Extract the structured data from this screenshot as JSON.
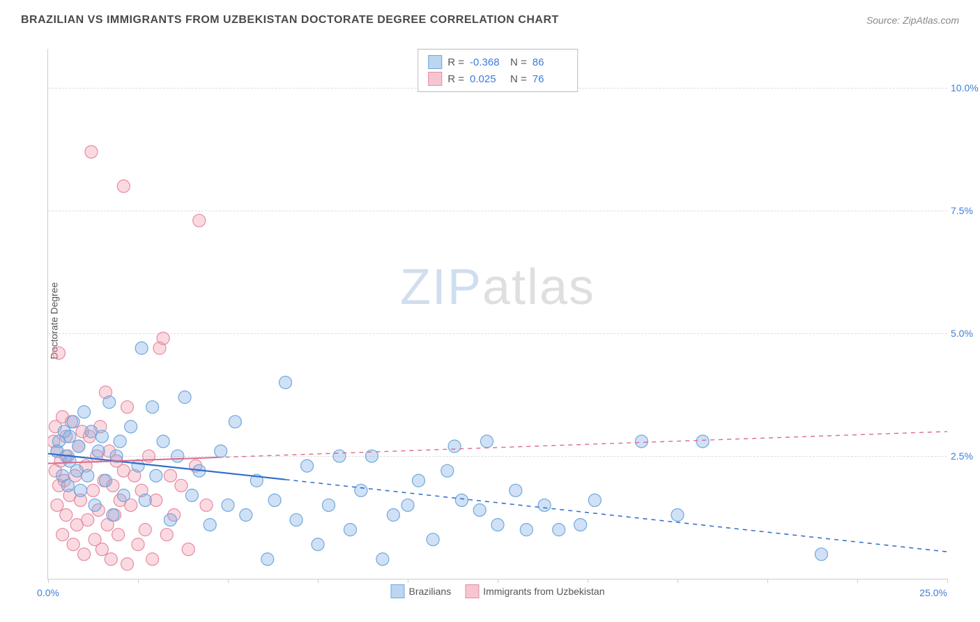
{
  "header": {
    "title": "BRAZILIAN VS IMMIGRANTS FROM UZBEKISTAN DOCTORATE DEGREE CORRELATION CHART",
    "source": "Source: ZipAtlas.com"
  },
  "ylabel": "Doctorate Degree",
  "watermark": {
    "left": "ZIP",
    "right": "atlas"
  },
  "chart": {
    "type": "scatter",
    "xlim": [
      0,
      25
    ],
    "ylim": [
      0,
      10.8
    ],
    "x_origin_label": "0.0%",
    "x_max_label": "25.0%",
    "yticks": [
      2.5,
      5.0,
      7.5,
      10.0
    ],
    "ytick_labels": [
      "2.5%",
      "5.0%",
      "7.5%",
      "10.0%"
    ],
    "xtick_positions": [
      0,
      2.5,
      5,
      7.5,
      10,
      12.5,
      15,
      17.5,
      20,
      22.5,
      25
    ],
    "grid_color": "#dddddd",
    "background_color": "#ffffff",
    "marker_radius": 9,
    "marker_stroke_width": 1.2,
    "series": [
      {
        "name": "Brazilians",
        "fill": "rgba(120,170,230,0.35)",
        "stroke": "#6fa8dc",
        "swatch_fill": "#bcd5f0",
        "swatch_border": "#6fa8dc",
        "trend": {
          "x1": 0,
          "y1": 2.55,
          "x2": 25,
          "y2": 0.55,
          "solid_until_x": 6.6,
          "color": "#2f6fc9",
          "width": 2.2
        },
        "R": "-0.368",
        "N": "86",
        "points": [
          [
            0.25,
            2.6
          ],
          [
            0.3,
            2.8
          ],
          [
            0.4,
            2.1
          ],
          [
            0.45,
            3.0
          ],
          [
            0.5,
            2.5
          ],
          [
            0.55,
            1.9
          ],
          [
            0.6,
            2.9
          ],
          [
            0.6,
            2.4
          ],
          [
            0.7,
            3.2
          ],
          [
            0.8,
            2.2
          ],
          [
            0.85,
            2.7
          ],
          [
            0.9,
            1.8
          ],
          [
            1.0,
            3.4
          ],
          [
            1.1,
            2.1
          ],
          [
            1.2,
            3.0
          ],
          [
            1.3,
            1.5
          ],
          [
            1.4,
            2.6
          ],
          [
            1.5,
            2.9
          ],
          [
            1.6,
            2.0
          ],
          [
            1.7,
            3.6
          ],
          [
            1.8,
            1.3
          ],
          [
            1.9,
            2.5
          ],
          [
            2.0,
            2.8
          ],
          [
            2.1,
            1.7
          ],
          [
            2.3,
            3.1
          ],
          [
            2.5,
            2.3
          ],
          [
            2.6,
            4.7
          ],
          [
            2.7,
            1.6
          ],
          [
            2.9,
            3.5
          ],
          [
            3.0,
            2.1
          ],
          [
            3.2,
            2.8
          ],
          [
            3.4,
            1.2
          ],
          [
            3.6,
            2.5
          ],
          [
            3.8,
            3.7
          ],
          [
            4.0,
            1.7
          ],
          [
            4.2,
            2.2
          ],
          [
            4.5,
            1.1
          ],
          [
            4.8,
            2.6
          ],
          [
            5.0,
            1.5
          ],
          [
            5.2,
            3.2
          ],
          [
            5.5,
            1.3
          ],
          [
            5.8,
            2.0
          ],
          [
            6.1,
            0.4
          ],
          [
            6.3,
            1.6
          ],
          [
            6.6,
            4.0
          ],
          [
            6.9,
            1.2
          ],
          [
            7.2,
            2.3
          ],
          [
            7.5,
            0.7
          ],
          [
            7.8,
            1.5
          ],
          [
            8.1,
            2.5
          ],
          [
            8.4,
            1.0
          ],
          [
            8.7,
            1.8
          ],
          [
            9.0,
            2.5
          ],
          [
            9.3,
            0.4
          ],
          [
            9.6,
            1.3
          ],
          [
            10.0,
            1.5
          ],
          [
            10.3,
            2.0
          ],
          [
            10.7,
            0.8
          ],
          [
            11.1,
            2.2
          ],
          [
            11.3,
            2.7
          ],
          [
            11.5,
            1.6
          ],
          [
            12.0,
            1.4
          ],
          [
            12.2,
            2.8
          ],
          [
            12.5,
            1.1
          ],
          [
            13.0,
            1.8
          ],
          [
            13.3,
            1.0
          ],
          [
            13.8,
            1.5
          ],
          [
            14.2,
            1.0
          ],
          [
            14.8,
            1.1
          ],
          [
            15.2,
            1.6
          ],
          [
            16.5,
            2.8
          ],
          [
            17.5,
            1.3
          ],
          [
            18.2,
            2.8
          ],
          [
            21.5,
            0.5
          ]
        ]
      },
      {
        "name": "Immigrants from Uzbekistan",
        "fill": "rgba(240,150,170,0.35)",
        "stroke": "#e68aa2",
        "swatch_fill": "#f5c6d2",
        "swatch_border": "#e68aa2",
        "trend": {
          "x1": 0,
          "y1": 2.35,
          "x2": 25,
          "y2": 3.0,
          "solid_until_x": 4.7,
          "color": "#d96a8c",
          "width": 2
        },
        "R": "0.025",
        "N": "76",
        "points": [
          [
            0.15,
            2.8
          ],
          [
            0.2,
            2.2
          ],
          [
            0.2,
            3.1
          ],
          [
            0.25,
            1.5
          ],
          [
            0.25,
            2.6
          ],
          [
            0.3,
            4.6
          ],
          [
            0.3,
            1.9
          ],
          [
            0.35,
            2.4
          ],
          [
            0.4,
            3.3
          ],
          [
            0.4,
            0.9
          ],
          [
            0.45,
            2.0
          ],
          [
            0.5,
            2.9
          ],
          [
            0.5,
            1.3
          ],
          [
            0.55,
            2.5
          ],
          [
            0.6,
            1.7
          ],
          [
            0.65,
            3.2
          ],
          [
            0.7,
            0.7
          ],
          [
            0.75,
            2.1
          ],
          [
            0.8,
            1.1
          ],
          [
            0.85,
            2.7
          ],
          [
            0.9,
            1.6
          ],
          [
            0.95,
            3.0
          ],
          [
            1.0,
            0.5
          ],
          [
            1.05,
            2.3
          ],
          [
            1.1,
            1.2
          ],
          [
            1.15,
            2.9
          ],
          [
            1.2,
            8.7
          ],
          [
            1.25,
            1.8
          ],
          [
            1.3,
            0.8
          ],
          [
            1.35,
            2.5
          ],
          [
            1.4,
            1.4
          ],
          [
            1.45,
            3.1
          ],
          [
            1.5,
            0.6
          ],
          [
            1.55,
            2.0
          ],
          [
            1.6,
            3.8
          ],
          [
            1.65,
            1.1
          ],
          [
            1.7,
            2.6
          ],
          [
            1.75,
            0.4
          ],
          [
            1.8,
            1.9
          ],
          [
            1.85,
            1.3
          ],
          [
            1.9,
            2.4
          ],
          [
            1.95,
            0.9
          ],
          [
            2.0,
            1.6
          ],
          [
            2.1,
            8.0
          ],
          [
            2.1,
            2.2
          ],
          [
            2.2,
            0.3
          ],
          [
            2.2,
            3.5
          ],
          [
            2.3,
            1.5
          ],
          [
            2.4,
            2.1
          ],
          [
            2.5,
            0.7
          ],
          [
            2.6,
            1.8
          ],
          [
            2.7,
            1.0
          ],
          [
            2.8,
            2.5
          ],
          [
            2.9,
            0.4
          ],
          [
            3.0,
            1.6
          ],
          [
            3.1,
            4.7
          ],
          [
            3.2,
            4.9
          ],
          [
            3.3,
            0.9
          ],
          [
            3.4,
            2.1
          ],
          [
            3.5,
            1.3
          ],
          [
            3.7,
            1.9
          ],
          [
            3.9,
            0.6
          ],
          [
            4.1,
            2.3
          ],
          [
            4.2,
            7.3
          ],
          [
            4.4,
            1.5
          ]
        ]
      }
    ]
  },
  "legend_top_labels": {
    "R": "R =",
    "N": "N ="
  },
  "legend_bottom": [
    {
      "label": "Brazilians",
      "series_idx": 0
    },
    {
      "label": "Immigrants from Uzbekistan",
      "series_idx": 1
    }
  ]
}
